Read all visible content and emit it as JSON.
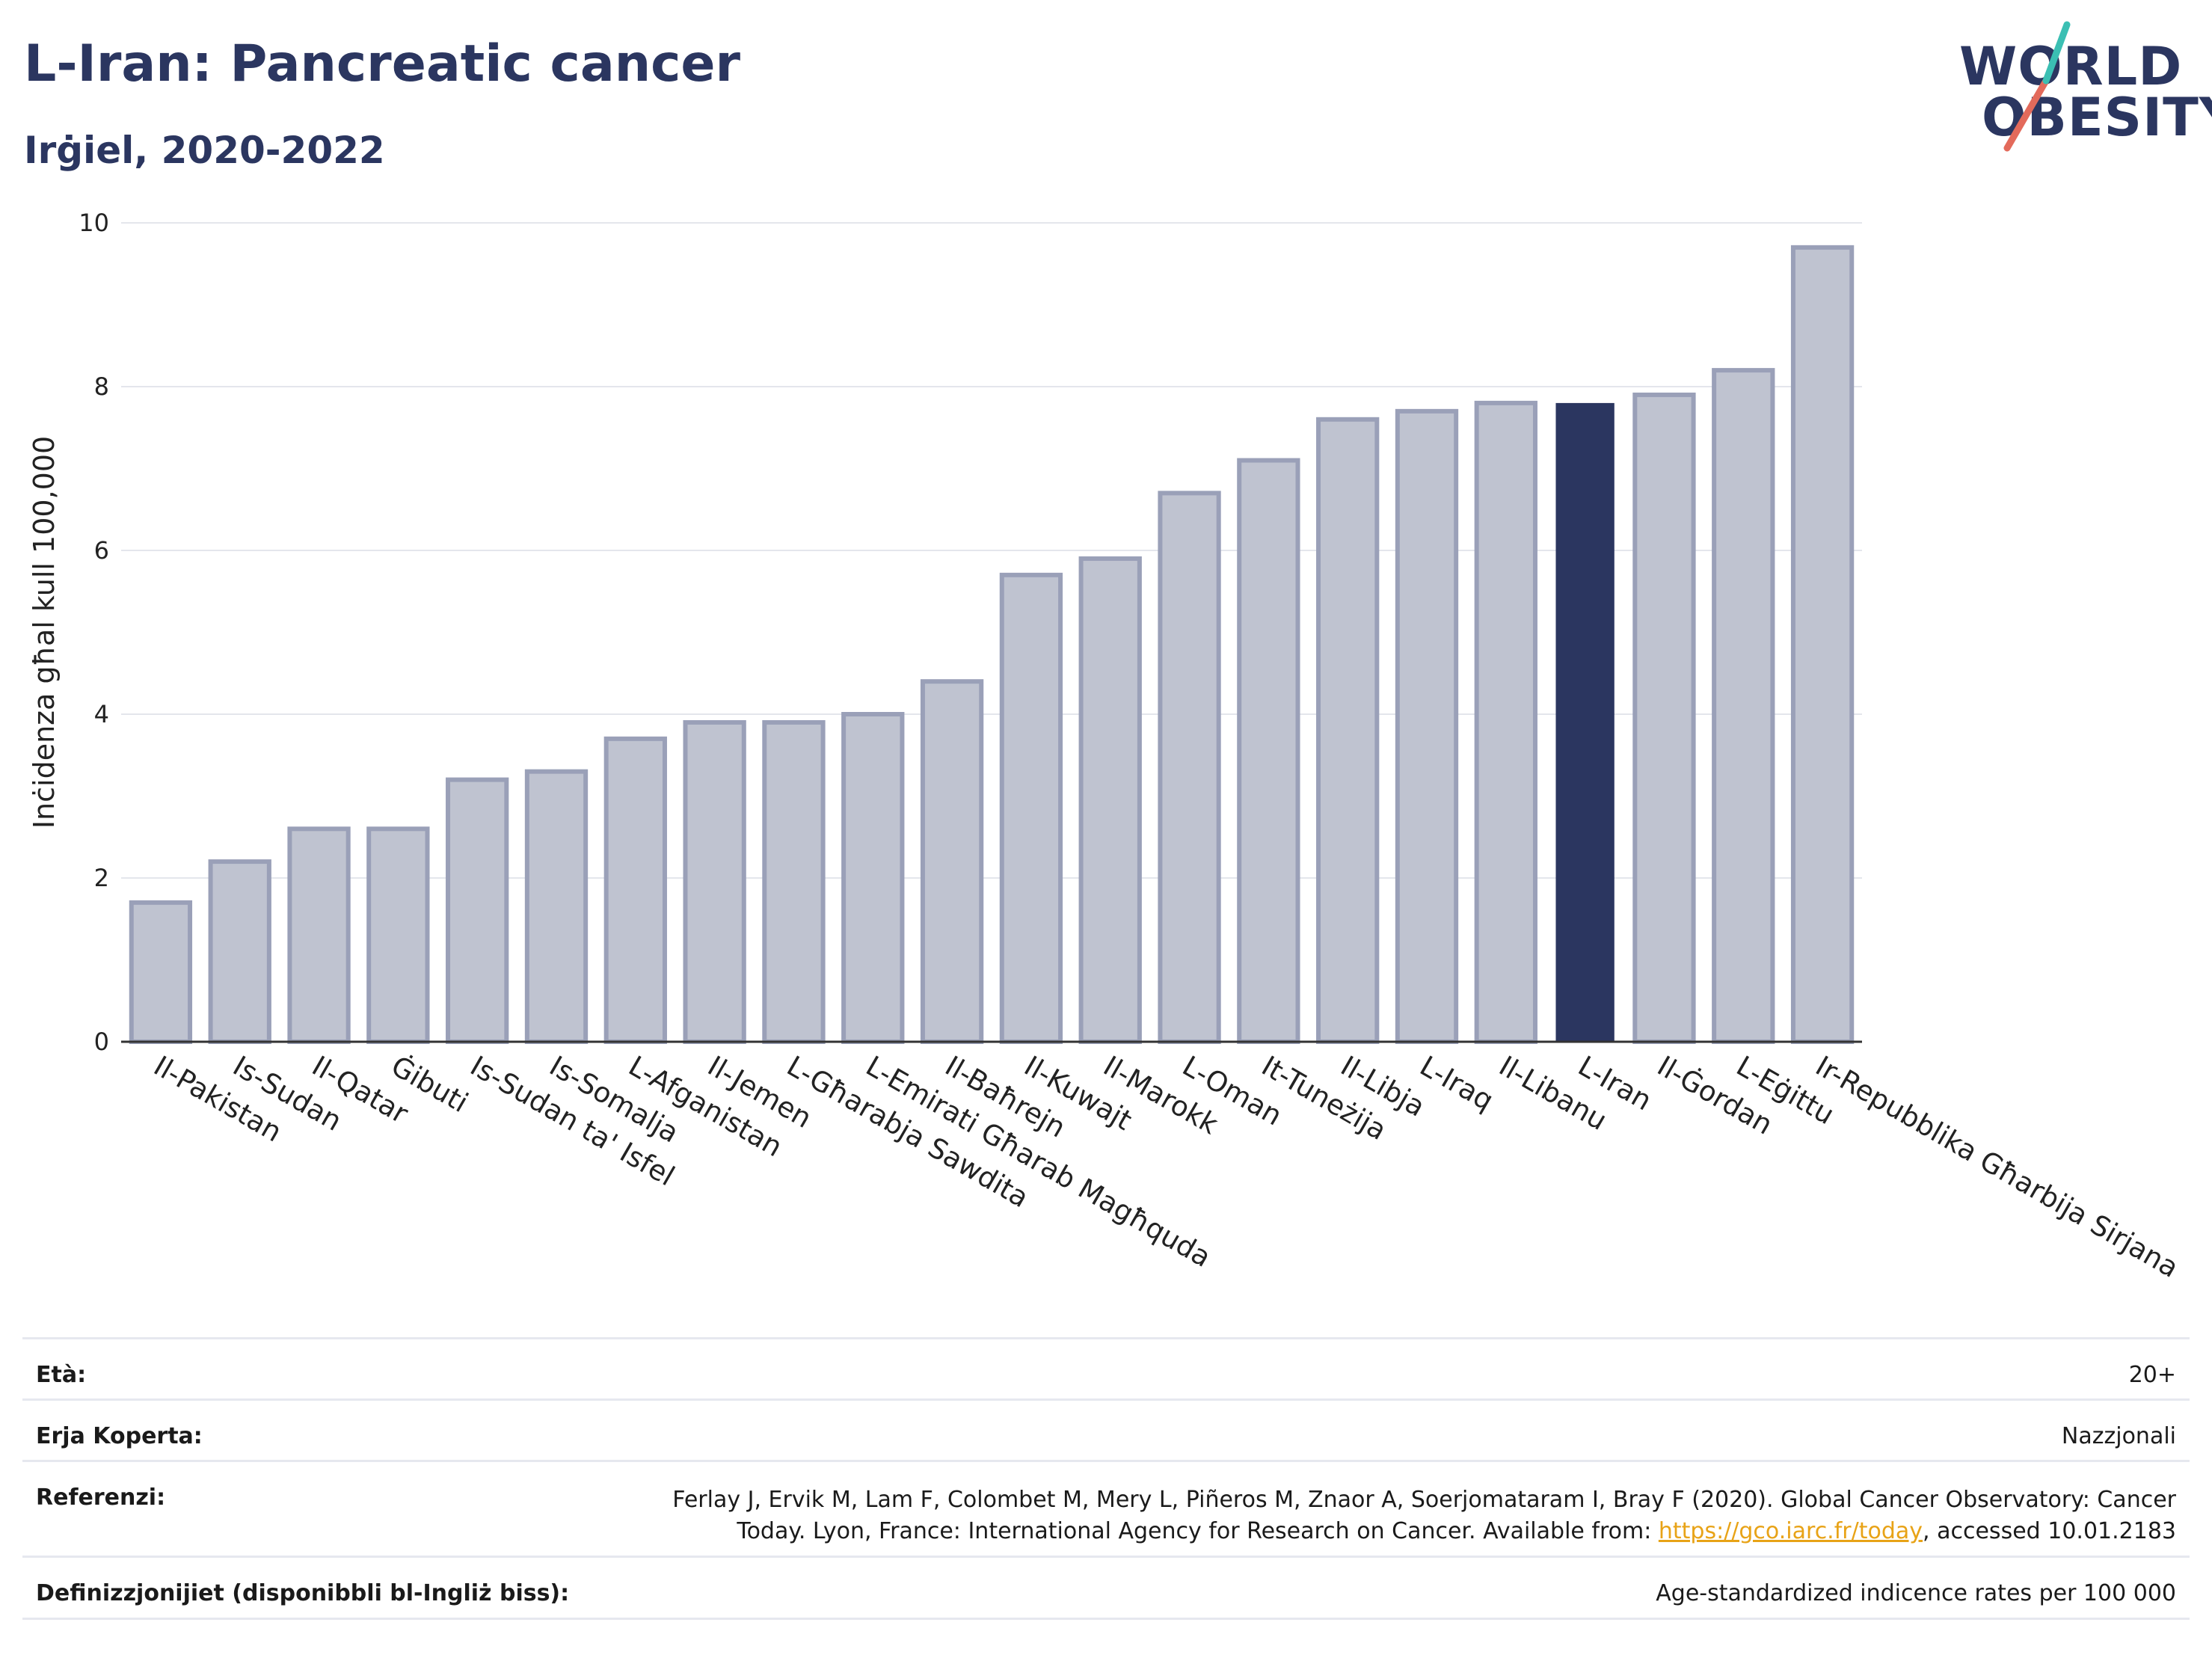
{
  "header": {
    "title": "L-Iran: Pancreatic cancer",
    "subtitle": "Irġiel, 2020-2022"
  },
  "logo": {
    "line1": "WORLD",
    "line2": "OBESITY"
  },
  "colors": {
    "bar": "#bfc3d0",
    "bar_stroke": "#9aa0b8",
    "highlight": "#2b3660",
    "title": "#2b3660",
    "grid": "#e4e6ec"
  },
  "chart_data": {
    "type": "bar",
    "ylabel": "Inċidenza għal kull 100,000",
    "ylim": [
      0,
      10
    ],
    "yticks": [
      0,
      2,
      4,
      6,
      8,
      10
    ],
    "grid": true,
    "highlight": "L-Iran",
    "categories": [
      "Il-Pakistan",
      "Is-Sudan",
      "Il-Qatar",
      "Ġibuti",
      "Is-Sudan ta' Isfel",
      "Is-Somalja",
      "L-Afganistan",
      "Il-Jemen",
      "L-Għarabja Sawdita",
      "L-Emirati Għarab Magħquda",
      "Il-Baħrejn",
      "Il-Kuwajt",
      "Il-Marokk",
      "L-Oman",
      "It-Tuneżija",
      "Il-Libja",
      "L-Iraq",
      "Il-Libanu",
      "L-Iran",
      "Il-Ġordan",
      "L-Eġittu",
      "Ir-Repubblika Għarbija Sirjana"
    ],
    "values": [
      1.7,
      2.2,
      2.6,
      2.6,
      3.2,
      3.3,
      3.7,
      3.9,
      3.9,
      4.0,
      4.4,
      5.7,
      5.9,
      6.7,
      7.1,
      7.6,
      7.7,
      7.8,
      7.8,
      7.9,
      8.2,
      9.7
    ]
  },
  "meta": {
    "age_label": "Età:",
    "age_value": "20+",
    "area_label": "Erja Koperta:",
    "area_value": "Nazzjonali",
    "ref_label": "Referenzi:",
    "ref_line1": "Ferlay J, Ervik M, Lam F, Colombet M, Mery L, Piñeros M, Znaor A, Soerjomataram I, Bray F (2020). Global Cancer Observatory: Cancer",
    "ref_line2_pre": "Today. Lyon, France: International Agency for Research on Cancer. Available from: ",
    "ref_link": "https://gco.iarc.fr/today",
    "ref_line2_post": ", accessed 10.01.2183",
    "def_label": "Definizzjonijiet (disponibbli bl-Ingliż biss):",
    "def_value": "Age-standardized indicence rates per 100 000"
  }
}
